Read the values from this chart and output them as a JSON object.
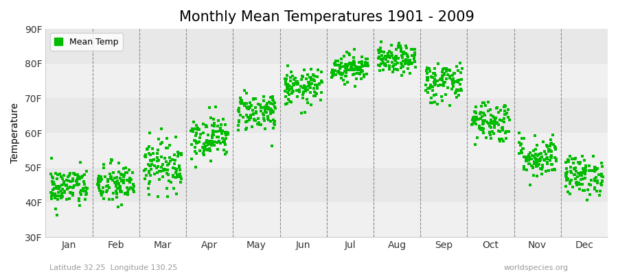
{
  "title": "Monthly Mean Temperatures 1901 - 2009",
  "ylabel": "Temperature",
  "xlabel_months": [
    "Jan",
    "Feb",
    "Mar",
    "Apr",
    "May",
    "Jun",
    "Jul",
    "Aug",
    "Sep",
    "Oct",
    "Nov",
    "Dec"
  ],
  "ylim": [
    30,
    90
  ],
  "yticks": [
    30,
    40,
    50,
    60,
    70,
    80,
    90
  ],
  "ytick_labels": [
    "30F",
    "40F",
    "50F",
    "60F",
    "70F",
    "80F",
    "90F"
  ],
  "dot_color": "#00bb00",
  "dot_size": 7,
  "background_color": "#ffffff",
  "title_fontsize": 15,
  "axis_label_fontsize": 10,
  "tick_label_fontsize": 10,
  "legend_label": "Mean Temp",
  "watermark_left": "Latitude 32.25  Longitude 130.25",
  "watermark_right": "worldspecies.org",
  "monthly_means": [
    43.5,
    44.5,
    50.0,
    58.0,
    65.5,
    72.5,
    78.5,
    80.5,
    74.0,
    63.0,
    52.5,
    47.0
  ],
  "monthly_stds": [
    2.8,
    3.0,
    3.5,
    3.0,
    2.8,
    2.5,
    2.0,
    2.0,
    3.0,
    3.0,
    3.0,
    2.8
  ],
  "monthly_trends": [
    0.015,
    0.012,
    0.018,
    0.016,
    0.012,
    0.01,
    0.008,
    0.008,
    0.012,
    0.01,
    0.012,
    0.015
  ],
  "n_years": 109,
  "seed": 42
}
